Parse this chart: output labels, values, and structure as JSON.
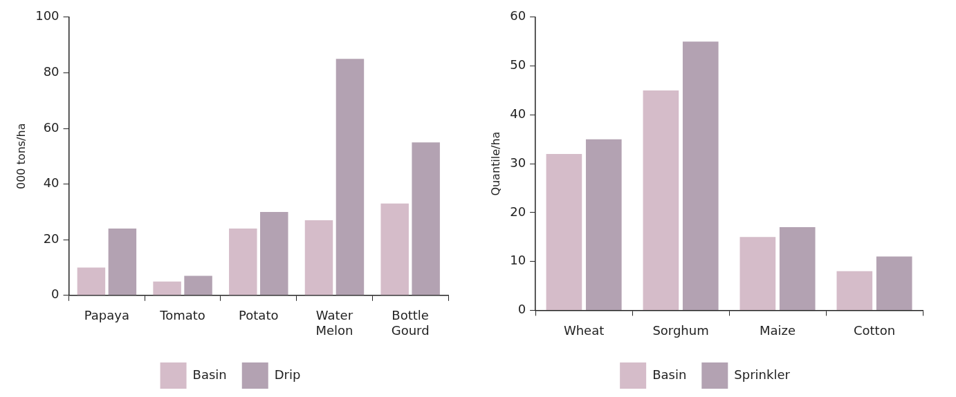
{
  "chart_data": [
    {
      "type": "bar",
      "categories": [
        "Papaya",
        "Tomato",
        "Potato",
        "Water Melon",
        "Bottle Gourd"
      ],
      "ylabel": "000 tons/ha",
      "ylim": [
        0,
        100
      ],
      "yticks": [
        0,
        20,
        40,
        60,
        80,
        100
      ],
      "grid": false,
      "legend": "bottom",
      "series": [
        {
          "name": "Basin",
          "color": "#d5bcc9",
          "values": [
            10,
            5,
            24,
            27,
            33
          ]
        },
        {
          "name": "Drip",
          "color": "#b3a2b2",
          "values": [
            24,
            7,
            30,
            85,
            55
          ]
        }
      ]
    },
    {
      "type": "bar",
      "categories": [
        "Wheat",
        "Sorghum",
        "Maize",
        "Cotton"
      ],
      "ylabel": "Quantile/ha",
      "ylim": [
        0,
        60
      ],
      "yticks": [
        0,
        10,
        20,
        30,
        40,
        50,
        60
      ],
      "grid": false,
      "legend": "bottom",
      "series": [
        {
          "name": "Basin",
          "color": "#d5bcc9",
          "values": [
            32,
            45,
            15,
            8
          ]
        },
        {
          "name": "Sprinkler",
          "color": "#b3a2b2",
          "values": [
            35,
            55,
            17,
            11
          ]
        }
      ]
    }
  ]
}
